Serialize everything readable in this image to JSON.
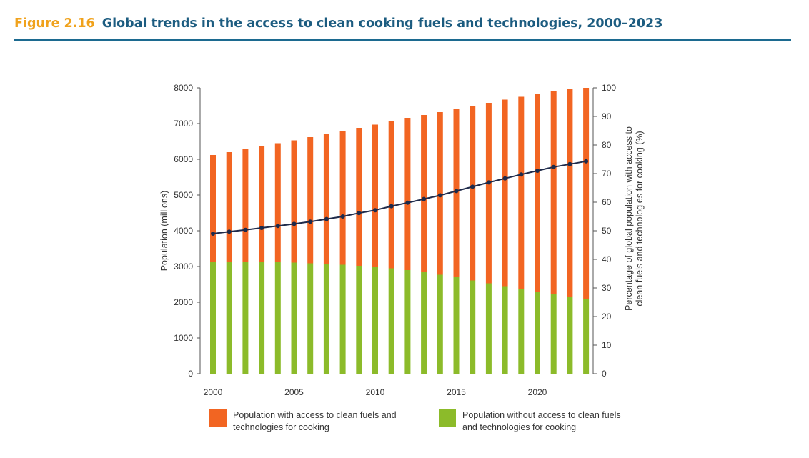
{
  "figure": {
    "label": "Figure 2.16",
    "title": "Global trends in the access to clean cooking fuels and technologies, 2000–2023"
  },
  "colors": {
    "with_access": "#f26522",
    "without_access": "#8cbb2a",
    "line": "#1e2a4a",
    "title_label": "#f0a21c",
    "title_text": "#1c5c80",
    "rule": "#1c6a90"
  },
  "chart_data": {
    "type": "bar",
    "stacked": true,
    "categories": [
      2000,
      2001,
      2002,
      2003,
      2004,
      2005,
      2006,
      2007,
      2008,
      2009,
      2010,
      2011,
      2012,
      2013,
      2014,
      2015,
      2016,
      2017,
      2018,
      2019,
      2020,
      2021,
      2022,
      2023
    ],
    "series": [
      {
        "name": "Population without access to clean fuels and technologies for cooking",
        "axis": "left",
        "values": [
          3130,
          3130,
          3130,
          3130,
          3120,
          3110,
          3090,
          3080,
          3050,
          3020,
          2990,
          2950,
          2900,
          2850,
          2770,
          2700,
          2610,
          2530,
          2450,
          2370,
          2300,
          2220,
          2160,
          2100
        ]
      },
      {
        "name": "Population with access to clean fuels and technologies for cooking",
        "axis": "left",
        "values": [
          2990,
          3070,
          3150,
          3230,
          3330,
          3420,
          3530,
          3620,
          3740,
          3860,
          3980,
          4110,
          4260,
          4390,
          4550,
          4710,
          4890,
          5050,
          5220,
          5380,
          5540,
          5690,
          5820,
          5900
        ]
      },
      {
        "name": "Percentage of global population with access to clean fuels and technologies for cooking (%)",
        "type": "line",
        "axis": "right",
        "values": [
          49,
          49.7,
          50.3,
          51,
          51.7,
          52.4,
          53.2,
          54.1,
          55,
          56.2,
          57.2,
          58.6,
          59.8,
          61.1,
          62.4,
          63.9,
          65.4,
          66.9,
          68.3,
          69.7,
          71,
          72.3,
          73.3,
          74.3
        ]
      }
    ],
    "xlabel": "",
    "ylabel": "Population (millions)",
    "y2label_lines": [
      "Percentage of global population with access to",
      "clean fuels and technologies for cooking (%)"
    ],
    "ylim": [
      0,
      8000
    ],
    "y2lim": [
      0,
      100
    ],
    "yticks": [
      0,
      1000,
      2000,
      3000,
      4000,
      5000,
      6000,
      7000,
      8000
    ],
    "y2ticks": [
      0,
      10,
      20,
      30,
      40,
      50,
      60,
      70,
      80,
      90,
      100
    ],
    "xticks": [
      2000,
      2005,
      2010,
      2015,
      2020
    ],
    "grid": false,
    "legend_position": "bottom"
  },
  "legend": {
    "with_access": "Population with access to clean fuels and technologies for cooking",
    "without_access": "Population without access to clean fuels and technologies for cooking"
  }
}
